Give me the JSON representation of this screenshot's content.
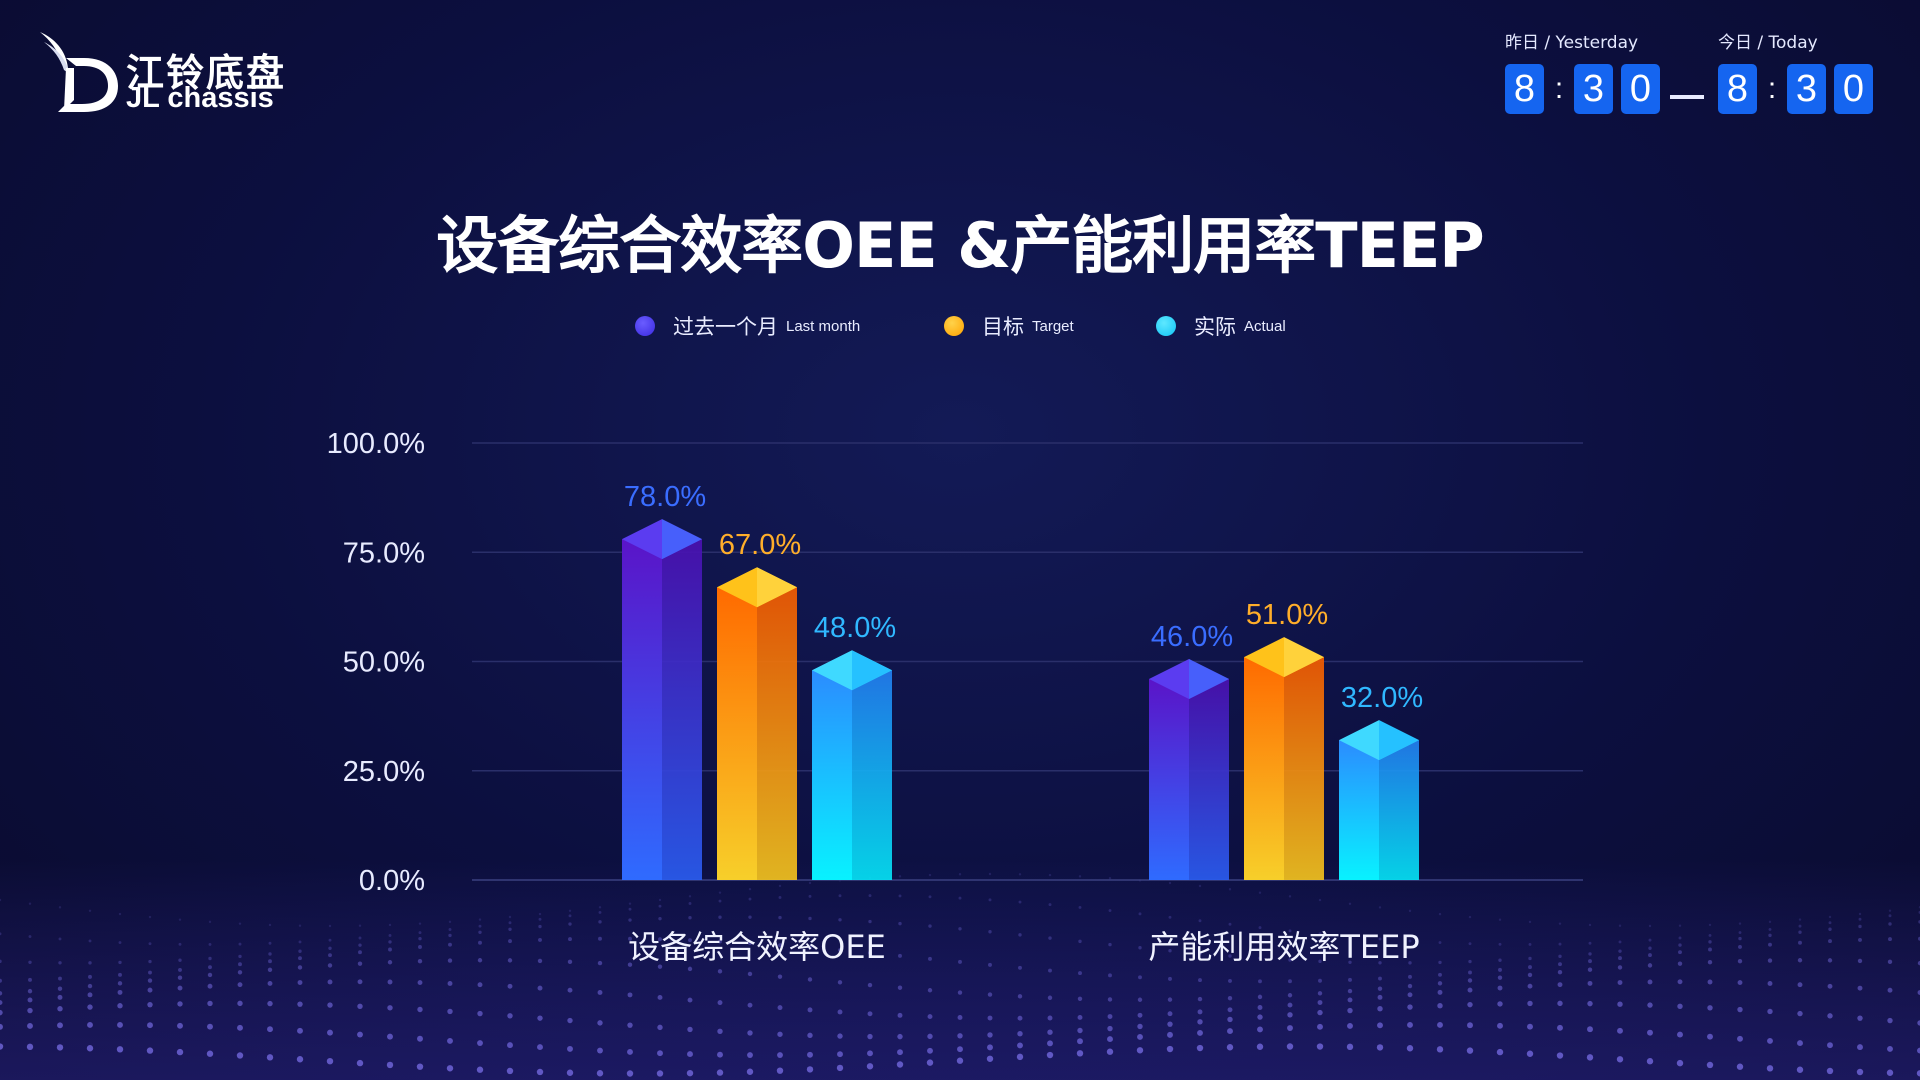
{
  "brand": {
    "name_cn": "江铃底盘",
    "name_en": "JL chassis"
  },
  "time": {
    "yesterday_label": "昨日 / Yesterday",
    "today_label": "今日 / Today",
    "yesterday_digits": [
      "8",
      "3",
      "0"
    ],
    "today_digits": [
      "8",
      "3",
      "0"
    ],
    "separator": ":"
  },
  "colors": {
    "last_month": "#4a3bf0",
    "target": "#ffb41f",
    "actual": "#22d3ff",
    "accent": "#1565f0"
  },
  "chart_data": {
    "type": "bar",
    "title": "设备综合效率OEE &产能利用率TEEP",
    "categories": [
      "设备综合效率OEE",
      "产能利用效率TEEP"
    ],
    "series": [
      {
        "name": "过去一个月 Last month",
        "name_cn": "过去一个月",
        "name_en": "Last month",
        "values": [
          78.0,
          46.0
        ]
      },
      {
        "name": "目标 Target",
        "name_cn": "目标",
        "name_en": "Target",
        "values": [
          67.0,
          51.0
        ]
      },
      {
        "name": "实际 Actual",
        "name_cn": "实际",
        "name_en": "Actual",
        "values": [
          48.0,
          32.0
        ]
      }
    ],
    "yticks": [
      "0.0%",
      "25.0%",
      "50.0%",
      "75.0%",
      "100.0%"
    ],
    "ylim": [
      0,
      100
    ],
    "grid": true,
    "legend": "top-center"
  }
}
